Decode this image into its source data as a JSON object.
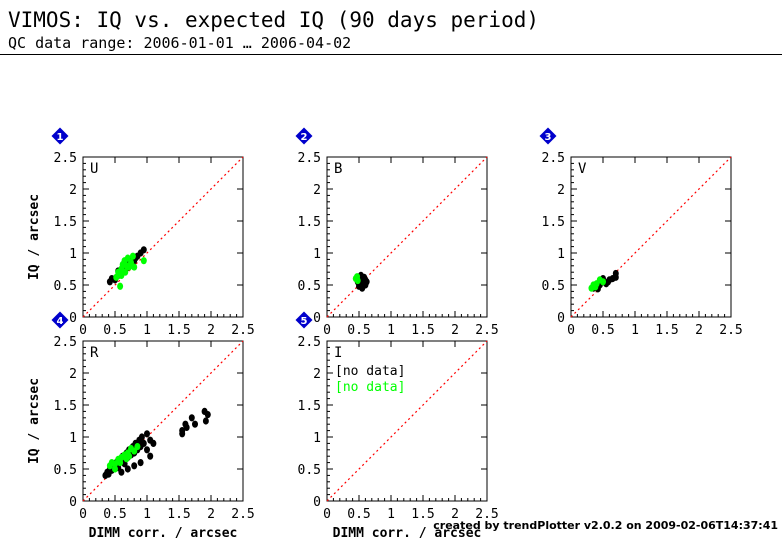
{
  "header": {
    "title": "VIMOS: IQ vs. expected IQ (90 days period)",
    "subtitle": "QC data range: 2006-01-01 … 2006-04-02"
  },
  "footer": {
    "credit": "created by trendPlotter v2.0.2 on 2009-02-06T14:37:41"
  },
  "colors": {
    "series_black": "#000000",
    "series_green": "#00ff00",
    "reference_line": "#ff0000",
    "badge": "#0000cc"
  },
  "axes": {
    "xlabel": "DIMM corr. / arcsec",
    "ylabel": "IQ / arcsec",
    "ticks": [
      "0",
      "0.5",
      "1",
      "1.5",
      "2",
      "2.5"
    ]
  },
  "chart_data": [
    {
      "type": "scatter",
      "badge": "1",
      "filter": "U",
      "xlim": [
        0,
        2.5
      ],
      "ylim": [
        0,
        2.5
      ],
      "reference_line": "y = x",
      "series": [
        {
          "color": "#000000",
          "points": [
            [
              0.42,
              0.55
            ],
            [
              0.45,
              0.6
            ],
            [
              0.5,
              0.58
            ],
            [
              0.55,
              0.65
            ],
            [
              0.6,
              0.7
            ],
            [
              0.62,
              0.78
            ],
            [
              0.65,
              0.72
            ],
            [
              0.7,
              0.8
            ],
            [
              0.72,
              0.85
            ],
            [
              0.75,
              0.9
            ],
            [
              0.78,
              0.82
            ],
            [
              0.8,
              0.88
            ],
            [
              0.85,
              0.95
            ],
            [
              0.9,
              1.0
            ],
            [
              0.95,
              1.05
            ],
            [
              0.55,
              0.72
            ],
            [
              0.68,
              0.76
            ],
            [
              0.82,
              0.92
            ]
          ]
        },
        {
          "color": "#00ff00",
          "points": [
            [
              0.55,
              0.7
            ],
            [
              0.6,
              0.75
            ],
            [
              0.62,
              0.82
            ],
            [
              0.65,
              0.88
            ],
            [
              0.68,
              0.8
            ],
            [
              0.7,
              0.92
            ],
            [
              0.72,
              0.78
            ],
            [
              0.75,
              0.85
            ],
            [
              0.78,
              0.95
            ],
            [
              0.6,
              0.65
            ],
            [
              0.58,
              0.48
            ],
            [
              0.52,
              0.62
            ],
            [
              0.8,
              0.78
            ],
            [
              0.95,
              0.88
            ],
            [
              0.66,
              0.7
            ]
          ]
        }
      ]
    },
    {
      "type": "scatter",
      "badge": "2",
      "filter": "B",
      "xlim": [
        0,
        2.5
      ],
      "ylim": [
        0,
        2.5
      ],
      "reference_line": "y = x",
      "series": [
        {
          "color": "#000000",
          "points": [
            [
              0.48,
              0.55
            ],
            [
              0.5,
              0.6
            ],
            [
              0.52,
              0.5
            ],
            [
              0.55,
              0.58
            ],
            [
              0.58,
              0.62
            ],
            [
              0.6,
              0.5
            ],
            [
              0.55,
              0.45
            ],
            [
              0.5,
              0.48
            ],
            [
              0.62,
              0.55
            ],
            [
              0.6,
              0.58
            ],
            [
              0.53,
              0.65
            ],
            [
              0.57,
              0.52
            ]
          ]
        },
        {
          "color": "#00ff00",
          "points": [
            [
              0.45,
              0.6
            ],
            [
              0.47,
              0.63
            ],
            [
              0.48,
              0.57
            ]
          ]
        }
      ]
    },
    {
      "type": "scatter",
      "badge": "3",
      "filter": "V",
      "xlim": [
        0,
        2.5
      ],
      "ylim": [
        0,
        2.5
      ],
      "reference_line": "y = x",
      "series": [
        {
          "color": "#000000",
          "points": [
            [
              0.35,
              0.45
            ],
            [
              0.4,
              0.48
            ],
            [
              0.45,
              0.5
            ],
            [
              0.5,
              0.55
            ],
            [
              0.55,
              0.52
            ],
            [
              0.6,
              0.58
            ],
            [
              0.65,
              0.6
            ],
            [
              0.7,
              0.62
            ],
            [
              0.7,
              0.68
            ],
            [
              0.5,
              0.6
            ],
            [
              0.42,
              0.44
            ],
            [
              0.58,
              0.55
            ]
          ]
        },
        {
          "color": "#00ff00",
          "points": [
            [
              0.32,
              0.45
            ],
            [
              0.35,
              0.5
            ],
            [
              0.4,
              0.52
            ],
            [
              0.45,
              0.58
            ],
            [
              0.5,
              0.55
            ],
            [
              0.38,
              0.47
            ]
          ]
        }
      ]
    },
    {
      "type": "scatter",
      "badge": "4",
      "filter": "R",
      "xlim": [
        0,
        2.5
      ],
      "ylim": [
        0,
        2.5
      ],
      "reference_line": "y = x",
      "series": [
        {
          "color": "#000000",
          "points": [
            [
              0.35,
              0.4
            ],
            [
              0.38,
              0.45
            ],
            [
              0.4,
              0.42
            ],
            [
              0.42,
              0.5
            ],
            [
              0.45,
              0.48
            ],
            [
              0.5,
              0.55
            ],
            [
              0.52,
              0.6
            ],
            [
              0.55,
              0.52
            ],
            [
              0.58,
              0.65
            ],
            [
              0.6,
              0.62
            ],
            [
              0.62,
              0.7
            ],
            [
              0.65,
              0.58
            ],
            [
              0.68,
              0.75
            ],
            [
              0.7,
              0.68
            ],
            [
              0.72,
              0.8
            ],
            [
              0.75,
              0.72
            ],
            [
              0.78,
              0.85
            ],
            [
              0.8,
              0.75
            ],
            [
              0.82,
              0.9
            ],
            [
              0.85,
              0.8
            ],
            [
              0.88,
              0.95
            ],
            [
              0.9,
              0.85
            ],
            [
              0.92,
              1.0
            ],
            [
              0.95,
              0.9
            ],
            [
              1.0,
              1.05
            ],
            [
              1.05,
              0.95
            ],
            [
              1.1,
              0.9
            ],
            [
              1.0,
              0.8
            ],
            [
              0.9,
              0.6
            ],
            [
              0.8,
              0.55
            ],
            [
              0.7,
              0.5
            ],
            [
              0.6,
              0.45
            ],
            [
              1.55,
              1.1
            ],
            [
              1.6,
              1.2
            ],
            [
              1.62,
              1.15
            ],
            [
              1.7,
              1.3
            ],
            [
              1.75,
              1.2
            ],
            [
              1.9,
              1.4
            ],
            [
              1.92,
              1.25
            ],
            [
              1.95,
              1.35
            ],
            [
              1.55,
              1.05
            ],
            [
              1.05,
              0.7
            ]
          ]
        },
        {
          "color": "#00ff00",
          "points": [
            [
              0.42,
              0.55
            ],
            [
              0.45,
              0.6
            ],
            [
              0.5,
              0.58
            ],
            [
              0.55,
              0.65
            ],
            [
              0.6,
              0.68
            ],
            [
              0.65,
              0.72
            ],
            [
              0.7,
              0.75
            ],
            [
              0.72,
              0.7
            ],
            [
              0.75,
              0.82
            ],
            [
              0.8,
              0.78
            ],
            [
              0.85,
              0.85
            ],
            [
              0.5,
              0.5
            ],
            [
              0.58,
              0.6
            ],
            [
              0.68,
              0.66
            ]
          ]
        }
      ]
    },
    {
      "type": "scatter",
      "badge": "5",
      "filter": "I",
      "xlim": [
        0,
        2.5
      ],
      "ylim": [
        0,
        2.5
      ],
      "reference_line": "y = x",
      "no_data": [
        {
          "text": "[no data]",
          "color": "#000000"
        },
        {
          "text": "[no data]",
          "color": "#00ff00"
        }
      ],
      "series": []
    }
  ]
}
